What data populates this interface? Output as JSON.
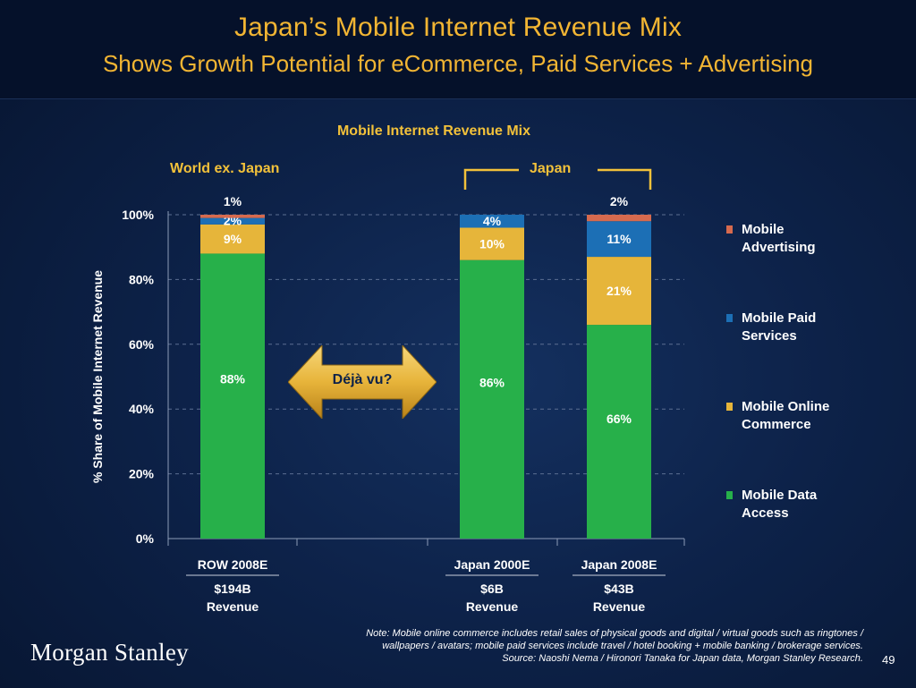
{
  "header": {
    "title": "Japan’s Mobile Internet Revenue Mix",
    "subtitle": "Shows Growth Potential for eCommerce, Paid Services + Advertising"
  },
  "colors": {
    "gold": "#f2b533",
    "data_access": "#27b04a",
    "online_commerce": "#e6b53a",
    "paid_services": "#1c6fb5",
    "advertising": "#d66a4e"
  },
  "chart_data": {
    "type": "bar",
    "stacked": true,
    "title": "Mobile Internet Revenue Mix",
    "ylabel": "% Share of Mobile Internet Revenue",
    "ylim": [
      0,
      100
    ],
    "yticks": [
      "0%",
      "20%",
      "40%",
      "60%",
      "80%",
      "100%"
    ],
    "group_labels": {
      "world": "World ex. Japan",
      "japan": "Japan"
    },
    "categories": [
      "ROW 2008E",
      "Japan 2000E",
      "Japan 2008E"
    ],
    "revenues": [
      {
        "amount": "$194B",
        "label": "Revenue"
      },
      {
        "amount": "$6B",
        "label": "Revenue"
      },
      {
        "amount": "$43B",
        "label": "Revenue"
      }
    ],
    "series": [
      {
        "name": "Mobile Data Access",
        "values": [
          88,
          86,
          66
        ],
        "labels": [
          "88%",
          "86%",
          "66%"
        ]
      },
      {
        "name": "Mobile Online Commerce",
        "values": [
          9,
          10,
          21
        ],
        "labels": [
          "9%",
          "10%",
          "21%"
        ]
      },
      {
        "name": "Mobile Paid Services",
        "values": [
          2,
          4,
          11
        ],
        "labels": [
          "2%",
          "4%",
          "11%"
        ]
      },
      {
        "name": "Mobile Advertising",
        "values": [
          1,
          0,
          2
        ],
        "labels": [
          "1%",
          "",
          "2%"
        ]
      }
    ],
    "legend": [
      {
        "line1": "Mobile",
        "line2": "Advertising"
      },
      {
        "line1": "Mobile Paid",
        "line2": "Services"
      },
      {
        "line1": "Mobile Online",
        "line2": "Commerce"
      },
      {
        "line1": "Mobile Data",
        "line2": "Access"
      }
    ],
    "callout": "Déjà vu?"
  },
  "note": {
    "line1": "Note: Mobile online commerce includes retail sales of physical goods and digital / virtual goods such as ringtones /",
    "line2": "wallpapers / avatars; mobile paid services include travel / hotel booking + mobile banking / brokerage services.",
    "line3": "Source: Naoshi Nema / Hironori Tanaka for Japan data, Morgan Stanley Research."
  },
  "footer": {
    "logo": "Morgan Stanley",
    "page": "49"
  }
}
